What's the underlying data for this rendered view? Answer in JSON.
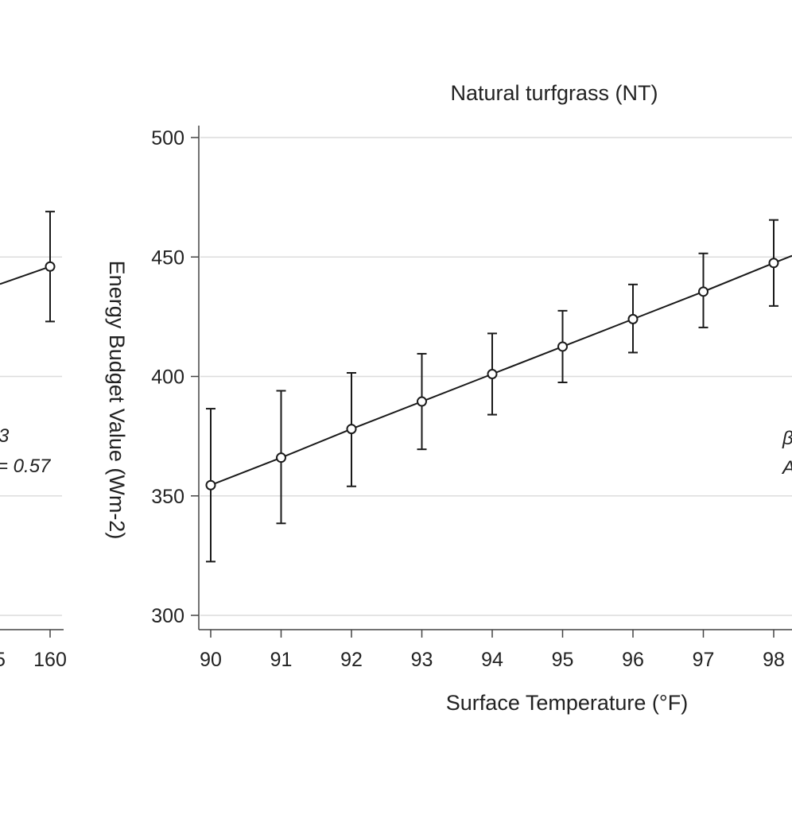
{
  "chart_data": [
    {
      "type": "line",
      "title": "",
      "xlabel": "",
      "ylabel": "",
      "x_ticks_visible": [
        "5",
        "160"
      ],
      "y_gridlines": [
        300,
        350,
        400,
        450
      ],
      "series": [
        {
          "x": [
            160
          ],
          "y": [
            446
          ],
          "err_low": [
            423
          ],
          "err_high": [
            469
          ]
        }
      ],
      "annotations": [
        "3",
        "= 0.57"
      ],
      "grid": true
    },
    {
      "type": "line",
      "title": "Natural turfgrass (NT)",
      "xlabel": "Surface Temperature (°F)",
      "ylabel": "Energy Budget Value (Wm-2)",
      "ylim": [
        300,
        500
      ],
      "xlim": [
        90,
        98
      ],
      "y_ticks": [
        300,
        350,
        400,
        450,
        500
      ],
      "x_ticks": [
        90,
        91,
        92,
        93,
        94,
        95,
        96,
        97,
        98
      ],
      "series": [
        {
          "x": [
            90,
            91,
            92,
            93,
            94,
            95,
            96,
            97,
            98
          ],
          "y": [
            354.5,
            366,
            378,
            389.5,
            401,
            412.5,
            424,
            435.5,
            447.5
          ],
          "err_low": [
            322.5,
            338.5,
            354,
            369.5,
            384,
            397.5,
            410,
            420.5,
            429.5
          ],
          "err_high": [
            386.5,
            394,
            401.5,
            409.5,
            418,
            427.5,
            438.5,
            451.5,
            465.5
          ],
          "marker": "hollow-circle",
          "color": "#1a1a1a"
        }
      ],
      "annotations": [
        "β",
        "A"
      ],
      "grid": true,
      "grid_color": "#dcdcdc"
    }
  ]
}
